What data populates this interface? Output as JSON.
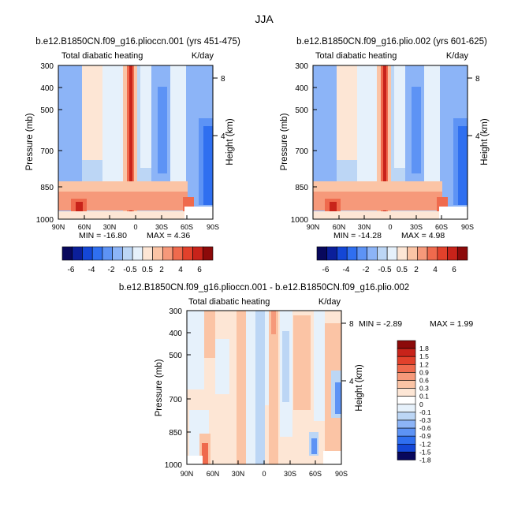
{
  "page_title": "JJA",
  "chart_data": [
    {
      "type": "heatmap",
      "title": "b.e12.B1850CN.f09_g16.plioccn.001 (yrs 451-475)",
      "subtitle_left": "Total diabatic heating",
      "subtitle_right": "K/day",
      "ylabel": "Pressure (mb)",
      "ylabel_right": "Height (km)",
      "x_ticks": [
        "90N",
        "60N",
        "30N",
        "0",
        "30S",
        "60S",
        "90S"
      ],
      "y_ticks": [
        "300",
        "400",
        "500",
        "700",
        "850",
        "1000"
      ],
      "height_ticks": [
        "8",
        "4"
      ],
      "min_label": "MIN = -16.80",
      "max_label": "MAX = 4.36",
      "colorbar_labels": [
        "-6",
        "-4",
        "-2",
        "-0.5",
        "0.5",
        "2",
        "4",
        "6"
      ],
      "ylim": [
        1000,
        300
      ]
    },
    {
      "type": "heatmap",
      "title": "b.e12.B1850CN.f09_g16.plio.002 (yrs 601-625)",
      "subtitle_left": "Total diabatic heating",
      "subtitle_right": "K/day",
      "ylabel": "Pressure (mb)",
      "ylabel_right": "Height (km)",
      "x_ticks": [
        "90N",
        "60N",
        "30N",
        "0",
        "30S",
        "60S",
        "90S"
      ],
      "y_ticks": [
        "300",
        "400",
        "500",
        "700",
        "850",
        "1000"
      ],
      "height_ticks": [
        "8",
        "4"
      ],
      "min_label": "MIN = -14.28",
      "max_label": "MAX = 4.98",
      "colorbar_labels": [
        "-6",
        "-4",
        "-2",
        "-0.5",
        "0.5",
        "2",
        "4",
        "6"
      ],
      "ylim": [
        1000,
        300
      ]
    },
    {
      "type": "heatmap",
      "title": "b.e12.B1850CN.f09_g16.plioccn.001 - b.e12.B1850CN.f09_g16.plio.002",
      "subtitle_left": "Total diabatic heating",
      "subtitle_right": "K/day",
      "ylabel": "Pressure (mb)",
      "ylabel_right": "Height (km)",
      "x_ticks": [
        "90N",
        "60N",
        "30N",
        "0",
        "30S",
        "60S",
        "90S"
      ],
      "y_ticks": [
        "300",
        "400",
        "500",
        "700",
        "850",
        "1000"
      ],
      "height_ticks": [
        "8",
        "4"
      ],
      "min_label": "MIN = -2.89",
      "max_label": "MAX = 1.99",
      "colorbar_labels": [
        "1.8",
        "1.5",
        "1.2",
        "0.9",
        "0.6",
        "0.3",
        "0.1",
        "0",
        "-0.1",
        "-0.3",
        "-0.6",
        "-0.9",
        "-1.2",
        "-1.5",
        "-1.8"
      ],
      "ylim": [
        1000,
        300
      ]
    }
  ],
  "colors": {
    "full_scale": [
      "#08085c",
      "#0b1f9a",
      "#1447d6",
      "#2f6ff0",
      "#5d93f5",
      "#8cb4f7",
      "#bcd6f5",
      "#e6f1fb",
      "#fde6d5",
      "#fbc4a5",
      "#f6997a",
      "#ef6a4d",
      "#e2412b",
      "#c8231a",
      "#8c0a0a"
    ],
    "diff_scale": [
      "#8c0a0a",
      "#c8231a",
      "#e2412b",
      "#ef6a4d",
      "#f6997a",
      "#fbc4a5",
      "#fde6d5",
      "#ffffff",
      "#e6f1fb",
      "#bcd6f5",
      "#8cb4f7",
      "#5d93f5",
      "#2f6ff0",
      "#1447d6",
      "#08085c"
    ]
  }
}
